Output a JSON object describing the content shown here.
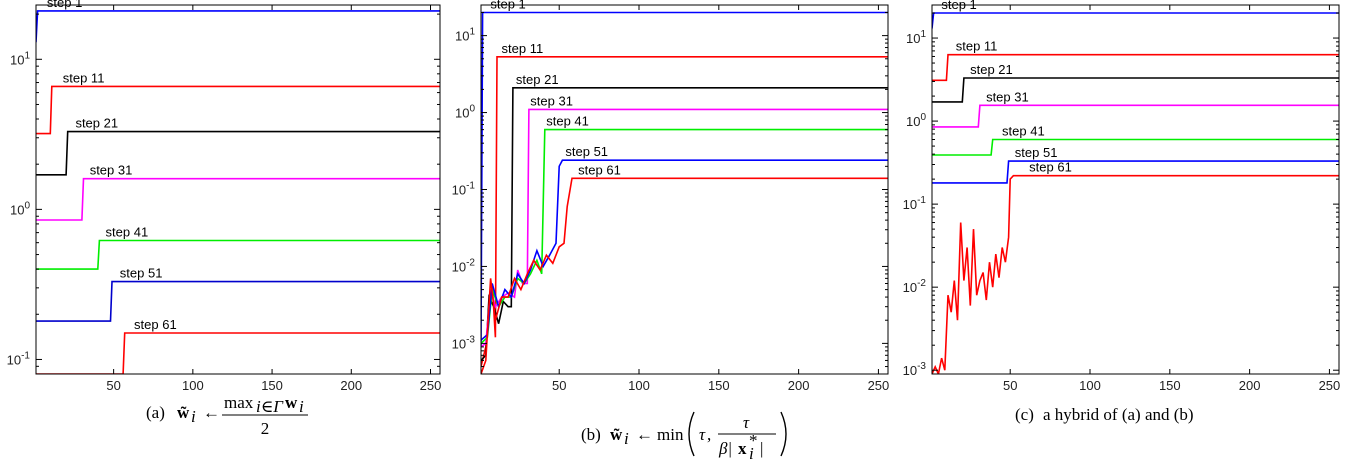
{
  "chart_data": [
    {
      "type": "line",
      "panel": "a",
      "caption": {
        "tag": "(a)",
        "lhs": "w̃",
        "sub": "i",
        "arrow": "←",
        "num_op": "max",
        "num_sub": "i∈Γ",
        "num_var": "w",
        "num_var_sub": "i",
        "den": "2"
      },
      "y_scale": "log",
      "xlim": [
        1,
        256
      ],
      "ylim": [
        0.08,
        23
      ],
      "x_ticks": [
        50,
        100,
        150,
        200,
        250
      ],
      "x_tick_labels": [
        "50",
        "100",
        "150",
        "200",
        "250"
      ],
      "y_ticks": [
        0.1,
        1,
        10
      ],
      "y_tick_labels": [
        [
          "10",
          "-1"
        ],
        [
          "10",
          "0"
        ],
        [
          "10",
          "1"
        ]
      ],
      "series": [
        {
          "name": "step 1",
          "color": "#0000ff",
          "label_x": 6,
          "points": [
            [
              1,
              13
            ],
            [
              2,
              21
            ],
            [
              256,
              21
            ]
          ]
        },
        {
          "name": "step 11",
          "color": "#ff0000",
          "label_x": 16,
          "points": [
            [
              1,
              3.2
            ],
            [
              10,
              3.2
            ],
            [
              11,
              6.6
            ],
            [
              256,
              6.6
            ]
          ]
        },
        {
          "name": "step 21",
          "color": "#000000",
          "label_x": 24,
          "points": [
            [
              1,
              1.7
            ],
            [
              20,
              1.7
            ],
            [
              21,
              3.3
            ],
            [
              256,
              3.3
            ]
          ]
        },
        {
          "name": "step 31",
          "color": "#ff00ff",
          "label_x": 33,
          "points": [
            [
              1,
              0.85
            ],
            [
              30,
              0.85
            ],
            [
              31,
              1.6
            ],
            [
              256,
              1.6
            ]
          ]
        },
        {
          "name": "step 41",
          "color": "#00ee00",
          "label_x": 43,
          "points": [
            [
              1,
              0.4
            ],
            [
              40,
              0.4
            ],
            [
              41,
              0.62
            ],
            [
              256,
              0.62
            ]
          ]
        },
        {
          "name": "step 51",
          "color": "#0000cc",
          "label_x": 52,
          "points": [
            [
              1,
              0.18
            ],
            [
              48,
              0.18
            ],
            [
              49,
              0.33
            ],
            [
              256,
              0.33
            ]
          ]
        },
        {
          "name": "step 61",
          "color": "#ff0000",
          "label_x": 61,
          "points": [
            [
              1,
              0.08
            ],
            [
              56,
              0.08
            ],
            [
              57,
              0.15
            ],
            [
              256,
              0.15
            ]
          ]
        }
      ]
    },
    {
      "type": "line",
      "panel": "b",
      "caption": {
        "tag": "(b)",
        "lhs": "w̃",
        "sub": "i",
        "arrow": "←",
        "op": "min",
        "arg1": "τ",
        "frac_num": "τ",
        "frac_den_pre": "β|",
        "frac_den_var": "x",
        "frac_den_sup": "*",
        "frac_den_sub": "i",
        "frac_den_post": "|"
      },
      "y_scale": "log",
      "xlim": [
        1,
        256
      ],
      "ylim": [
        0.0004,
        25
      ],
      "x_ticks": [
        50,
        100,
        150,
        200,
        250
      ],
      "x_tick_labels": [
        "50",
        "100",
        "150",
        "200",
        "250"
      ],
      "y_ticks": [
        0.001,
        0.01,
        0.1,
        1,
        10
      ],
      "y_tick_labels": [
        [
          "10",
          "-3"
        ],
        [
          "10",
          "-2"
        ],
        [
          "10",
          "-1"
        ],
        [
          "10",
          "0"
        ],
        [
          "10",
          "1"
        ]
      ],
      "series": [
        {
          "name": "step 1",
          "color": "#0000ff",
          "label_x": 5,
          "points": [
            [
              1,
              0.0009
            ],
            [
              2,
              20
            ],
            [
              256,
              20
            ]
          ]
        },
        {
          "name": "step 11",
          "color": "#ff0000",
          "label_x": 12,
          "points": [
            [
              1,
              0.0005
            ],
            [
              4,
              0.0009
            ],
            [
              8,
              0.006
            ],
            [
              10,
              0.0012
            ],
            [
              11,
              5.3
            ],
            [
              256,
              5.3
            ]
          ]
        },
        {
          "name": "step 21",
          "color": "#000000",
          "label_x": 21,
          "points": [
            [
              1,
              0.0006
            ],
            [
              4,
              0.0007
            ],
            [
              6,
              0.004
            ],
            [
              9,
              0.003
            ],
            [
              12,
              0.0018
            ],
            [
              15,
              0.0035
            ],
            [
              18,
              0.003
            ],
            [
              20,
              0.003
            ],
            [
              21,
              2.1
            ],
            [
              256,
              2.1
            ]
          ]
        },
        {
          "name": "step 31",
          "color": "#ff00ff",
          "label_x": 30,
          "points": [
            [
              1,
              0.0009
            ],
            [
              4,
              0.001
            ],
            [
              7,
              0.005
            ],
            [
              10,
              0.003
            ],
            [
              14,
              0.004
            ],
            [
              18,
              0.0045
            ],
            [
              22,
              0.004
            ],
            [
              24,
              0.009
            ],
            [
              27,
              0.006
            ],
            [
              30,
              0.006
            ],
            [
              31,
              1.1
            ],
            [
              256,
              1.1
            ]
          ]
        },
        {
          "name": "step 41",
          "color": "#00ee00",
          "label_x": 40,
          "points": [
            [
              1,
              0.001
            ],
            [
              5,
              0.0012
            ],
            [
              8,
              0.005
            ],
            [
              12,
              0.003
            ],
            [
              16,
              0.004
            ],
            [
              20,
              0.004
            ],
            [
              24,
              0.007
            ],
            [
              28,
              0.006
            ],
            [
              32,
              0.008
            ],
            [
              36,
              0.012
            ],
            [
              39,
              0.008
            ],
            [
              41,
              0.6
            ],
            [
              256,
              0.6
            ]
          ]
        },
        {
          "name": "step 51",
          "color": "#0000ff",
          "label_x": 52,
          "points": [
            [
              1,
              0.0011
            ],
            [
              5,
              0.0013
            ],
            [
              8,
              0.006
            ],
            [
              12,
              0.003
            ],
            [
              16,
              0.005
            ],
            [
              20,
              0.004
            ],
            [
              24,
              0.008
            ],
            [
              28,
              0.006
            ],
            [
              32,
              0.009
            ],
            [
              36,
              0.016
            ],
            [
              40,
              0.01
            ],
            [
              44,
              0.014
            ],
            [
              48,
              0.02
            ],
            [
              50,
              0.2
            ],
            [
              52,
              0.24
            ],
            [
              256,
              0.24
            ]
          ]
        },
        {
          "name": "step 61",
          "color": "#ff0000",
          "label_x": 60,
          "points": [
            [
              1,
              0.0004
            ],
            [
              4,
              0.0006
            ],
            [
              7,
              0.007
            ],
            [
              10,
              0.002
            ],
            [
              14,
              0.004
            ],
            [
              18,
              0.004
            ],
            [
              22,
              0.007
            ],
            [
              26,
              0.005
            ],
            [
              30,
              0.008
            ],
            [
              34,
              0.012
            ],
            [
              38,
              0.009
            ],
            [
              42,
              0.014
            ],
            [
              46,
              0.011
            ],
            [
              50,
              0.018
            ],
            [
              53,
              0.02
            ],
            [
              55,
              0.06
            ],
            [
              58,
              0.14
            ],
            [
              256,
              0.14
            ]
          ]
        }
      ]
    },
    {
      "type": "line",
      "panel": "c",
      "caption": {
        "tag": "(c)",
        "text": "a hybrid of (a) and (b)"
      },
      "y_scale": "log",
      "xlim": [
        1,
        256
      ],
      "ylim": [
        0.0009,
        25
      ],
      "x_ticks": [
        50,
        100,
        150,
        200,
        250
      ],
      "x_tick_labels": [
        "50",
        "100",
        "150",
        "200",
        "250"
      ],
      "y_ticks": [
        0.001,
        0.01,
        0.1,
        1,
        10
      ],
      "y_tick_labels": [
        [
          "10",
          "-3"
        ],
        [
          "10",
          "-2"
        ],
        [
          "10",
          "-1"
        ],
        [
          "10",
          "0"
        ],
        [
          "10",
          "1"
        ]
      ],
      "series": [
        {
          "name": "step 1",
          "color": "#0000ff",
          "label_x": 5,
          "points": [
            [
              1,
              13
            ],
            [
              2,
              20
            ],
            [
              256,
              20
            ]
          ]
        },
        {
          "name": "step 11",
          "color": "#ff0000",
          "label_x": 14,
          "points": [
            [
              1,
              3.1
            ],
            [
              10,
              3.1
            ],
            [
              11,
              6.3
            ],
            [
              256,
              6.3
            ]
          ]
        },
        {
          "name": "step 21",
          "color": "#000000",
          "label_x": 23,
          "points": [
            [
              1,
              1.7
            ],
            [
              20,
              1.7
            ],
            [
              21,
              3.3
            ],
            [
              256,
              3.3
            ]
          ]
        },
        {
          "name": "step 31",
          "color": "#ff00ff",
          "label_x": 33,
          "points": [
            [
              1,
              0.85
            ],
            [
              30,
              0.85
            ],
            [
              31,
              1.55
            ],
            [
              256,
              1.55
            ]
          ]
        },
        {
          "name": "step 41",
          "color": "#00ee00",
          "label_x": 43,
          "points": [
            [
              1,
              0.39
            ],
            [
              38,
              0.39
            ],
            [
              39,
              0.6
            ],
            [
              256,
              0.6
            ]
          ]
        },
        {
          "name": "step 51",
          "color": "#0000ff",
          "label_x": 51,
          "points": [
            [
              1,
              0.18
            ],
            [
              48,
              0.18
            ],
            [
              49,
              0.33
            ],
            [
              256,
              0.33
            ]
          ]
        },
        {
          "name": "step 61",
          "color": "#ff0000",
          "label_x": 60,
          "points": [
            [
              1,
              0.0009
            ],
            [
              3,
              0.0011
            ],
            [
              5,
              0.0009
            ],
            [
              7,
              0.0014
            ],
            [
              9,
              0.001
            ],
            [
              11,
              0.008
            ],
            [
              13,
              0.005
            ],
            [
              15,
              0.012
            ],
            [
              17,
              0.004
            ],
            [
              19,
              0.06
            ],
            [
              21,
              0.012
            ],
            [
              23,
              0.03
            ],
            [
              25,
              0.006
            ],
            [
              27,
              0.05
            ],
            [
              29,
              0.008
            ],
            [
              31,
              0.012
            ],
            [
              33,
              0.015
            ],
            [
              35,
              0.007
            ],
            [
              37,
              0.02
            ],
            [
              39,
              0.01
            ],
            [
              41,
              0.025
            ],
            [
              43,
              0.013
            ],
            [
              45,
              0.03
            ],
            [
              47,
              0.02
            ],
            [
              49,
              0.04
            ],
            [
              50,
              0.2
            ],
            [
              52,
              0.22
            ],
            [
              256,
              0.22
            ]
          ]
        }
      ]
    }
  ]
}
